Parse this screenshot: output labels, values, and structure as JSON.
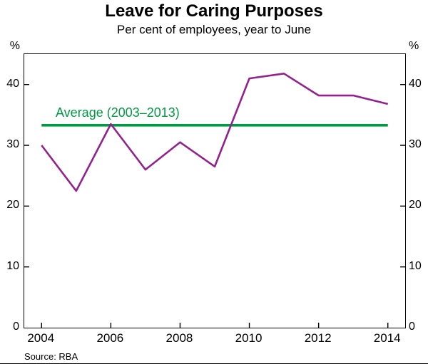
{
  "chart_data": {
    "type": "line",
    "title": "Leave for Caring Purposes",
    "subtitle": "Per cent of employees, year to June",
    "unit": "%",
    "x": [
      2004,
      2005,
      2006,
      2007,
      2008,
      2009,
      2010,
      2011,
      2012,
      2013,
      2014
    ],
    "series": [
      {
        "name": "Leave for caring purposes",
        "color": "#93218E",
        "values": [
          30,
          22.5,
          33.5,
          26,
          30.5,
          26.5,
          41,
          41.8,
          38.2,
          38.2,
          36.8
        ]
      }
    ],
    "average_line": {
      "label": "Average (2003–2013)",
      "value": 33.3,
      "color": "#009A44"
    },
    "xlim": [
      2003.5,
      2014.5
    ],
    "ylim": [
      0,
      45
    ],
    "yticks": [
      0,
      10,
      20,
      30,
      40
    ],
    "xticks": [
      2004,
      2006,
      2008,
      2010,
      2012,
      2014
    ],
    "grid": false,
    "legend_position": "none",
    "source": "Source: RBA"
  }
}
